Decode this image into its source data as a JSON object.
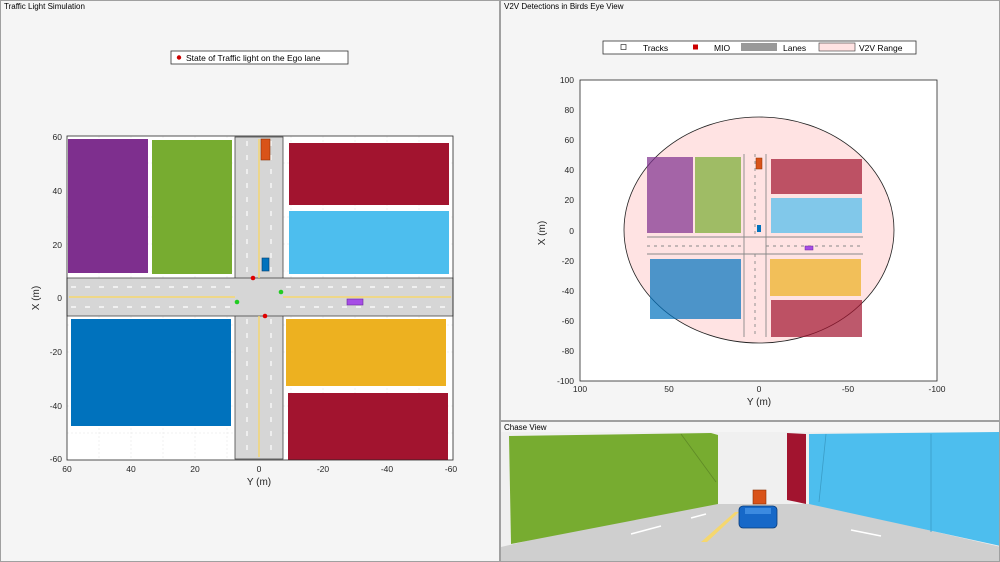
{
  "left_panel": {
    "title": "Traffic Light Simulation",
    "legend": "State of Traffic light on the Ego lane",
    "xlabel": "Y (m)",
    "ylabel": "X (m)",
    "xticks": [
      "60",
      "40",
      "20",
      "0",
      "-20",
      "-40",
      "-60"
    ],
    "yticks": [
      "60",
      "40",
      "20",
      "0",
      "-20",
      "-40",
      "-60"
    ]
  },
  "right_panel": {
    "title": "V2V Detections in Birds Eye View",
    "legend": {
      "tracks": "Tracks",
      "mio": "MIO",
      "lanes": "Lanes",
      "range": "V2V Range"
    },
    "xlabel": "Y (m)",
    "ylabel": "X (m)",
    "xticks": [
      "100",
      "50",
      "0",
      "-50",
      "-100"
    ],
    "yticks": [
      "100",
      "80",
      "60",
      "40",
      "20",
      "0",
      "-20",
      "-40",
      "-60",
      "-80",
      "-100"
    ]
  },
  "chase_panel": {
    "title": "Chase View"
  },
  "colors": {
    "purple": "#7e2f8e",
    "green": "#77ac30",
    "red": "#a2142f",
    "cyan": "#4dbeee",
    "blue": "#0072bd",
    "yellow": "#edb120",
    "road": "#d6d6d6",
    "lane_yellow": "#f5d76e",
    "range_fill": "#ffe3e3",
    "light_red": "#e00000",
    "light_green": "#22cc22"
  }
}
